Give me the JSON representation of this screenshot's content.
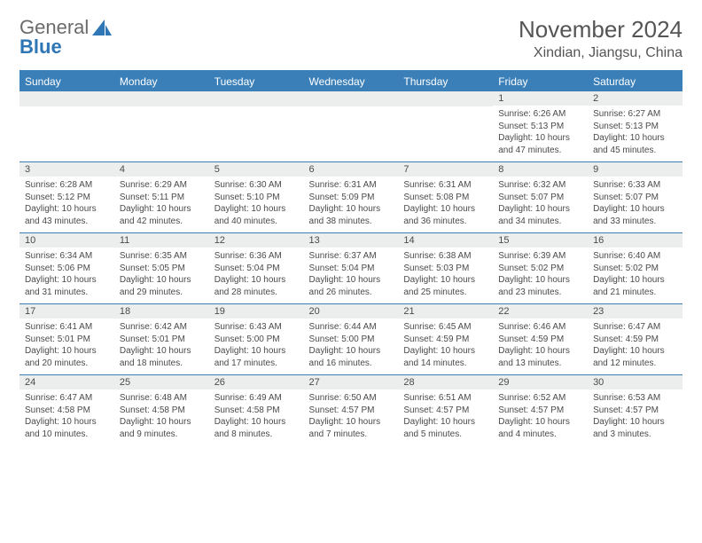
{
  "brand": {
    "part1": "General",
    "part2": "Blue"
  },
  "title": "November 2024",
  "location": "Xindian, Jiangsu, China",
  "colors": {
    "header_bg": "#3a7fb8",
    "header_text": "#ffffff",
    "daynum_bg": "#eceded",
    "border": "#3a7fb8",
    "body_text": "#4a4a4a",
    "title_text": "#555555"
  },
  "weekdays": [
    "Sunday",
    "Monday",
    "Tuesday",
    "Wednesday",
    "Thursday",
    "Friday",
    "Saturday"
  ],
  "weeks": [
    [
      {
        "day": "",
        "sunrise": "",
        "sunset": "",
        "daylight": ""
      },
      {
        "day": "",
        "sunrise": "",
        "sunset": "",
        "daylight": ""
      },
      {
        "day": "",
        "sunrise": "",
        "sunset": "",
        "daylight": ""
      },
      {
        "day": "",
        "sunrise": "",
        "sunset": "",
        "daylight": ""
      },
      {
        "day": "",
        "sunrise": "",
        "sunset": "",
        "daylight": ""
      },
      {
        "day": "1",
        "sunrise": "Sunrise: 6:26 AM",
        "sunset": "Sunset: 5:13 PM",
        "daylight": "Daylight: 10 hours and 47 minutes."
      },
      {
        "day": "2",
        "sunrise": "Sunrise: 6:27 AM",
        "sunset": "Sunset: 5:13 PM",
        "daylight": "Daylight: 10 hours and 45 minutes."
      }
    ],
    [
      {
        "day": "3",
        "sunrise": "Sunrise: 6:28 AM",
        "sunset": "Sunset: 5:12 PM",
        "daylight": "Daylight: 10 hours and 43 minutes."
      },
      {
        "day": "4",
        "sunrise": "Sunrise: 6:29 AM",
        "sunset": "Sunset: 5:11 PM",
        "daylight": "Daylight: 10 hours and 42 minutes."
      },
      {
        "day": "5",
        "sunrise": "Sunrise: 6:30 AM",
        "sunset": "Sunset: 5:10 PM",
        "daylight": "Daylight: 10 hours and 40 minutes."
      },
      {
        "day": "6",
        "sunrise": "Sunrise: 6:31 AM",
        "sunset": "Sunset: 5:09 PM",
        "daylight": "Daylight: 10 hours and 38 minutes."
      },
      {
        "day": "7",
        "sunrise": "Sunrise: 6:31 AM",
        "sunset": "Sunset: 5:08 PM",
        "daylight": "Daylight: 10 hours and 36 minutes."
      },
      {
        "day": "8",
        "sunrise": "Sunrise: 6:32 AM",
        "sunset": "Sunset: 5:07 PM",
        "daylight": "Daylight: 10 hours and 34 minutes."
      },
      {
        "day": "9",
        "sunrise": "Sunrise: 6:33 AM",
        "sunset": "Sunset: 5:07 PM",
        "daylight": "Daylight: 10 hours and 33 minutes."
      }
    ],
    [
      {
        "day": "10",
        "sunrise": "Sunrise: 6:34 AM",
        "sunset": "Sunset: 5:06 PM",
        "daylight": "Daylight: 10 hours and 31 minutes."
      },
      {
        "day": "11",
        "sunrise": "Sunrise: 6:35 AM",
        "sunset": "Sunset: 5:05 PM",
        "daylight": "Daylight: 10 hours and 29 minutes."
      },
      {
        "day": "12",
        "sunrise": "Sunrise: 6:36 AM",
        "sunset": "Sunset: 5:04 PM",
        "daylight": "Daylight: 10 hours and 28 minutes."
      },
      {
        "day": "13",
        "sunrise": "Sunrise: 6:37 AM",
        "sunset": "Sunset: 5:04 PM",
        "daylight": "Daylight: 10 hours and 26 minutes."
      },
      {
        "day": "14",
        "sunrise": "Sunrise: 6:38 AM",
        "sunset": "Sunset: 5:03 PM",
        "daylight": "Daylight: 10 hours and 25 minutes."
      },
      {
        "day": "15",
        "sunrise": "Sunrise: 6:39 AM",
        "sunset": "Sunset: 5:02 PM",
        "daylight": "Daylight: 10 hours and 23 minutes."
      },
      {
        "day": "16",
        "sunrise": "Sunrise: 6:40 AM",
        "sunset": "Sunset: 5:02 PM",
        "daylight": "Daylight: 10 hours and 21 minutes."
      }
    ],
    [
      {
        "day": "17",
        "sunrise": "Sunrise: 6:41 AM",
        "sunset": "Sunset: 5:01 PM",
        "daylight": "Daylight: 10 hours and 20 minutes."
      },
      {
        "day": "18",
        "sunrise": "Sunrise: 6:42 AM",
        "sunset": "Sunset: 5:01 PM",
        "daylight": "Daylight: 10 hours and 18 minutes."
      },
      {
        "day": "19",
        "sunrise": "Sunrise: 6:43 AM",
        "sunset": "Sunset: 5:00 PM",
        "daylight": "Daylight: 10 hours and 17 minutes."
      },
      {
        "day": "20",
        "sunrise": "Sunrise: 6:44 AM",
        "sunset": "Sunset: 5:00 PM",
        "daylight": "Daylight: 10 hours and 16 minutes."
      },
      {
        "day": "21",
        "sunrise": "Sunrise: 6:45 AM",
        "sunset": "Sunset: 4:59 PM",
        "daylight": "Daylight: 10 hours and 14 minutes."
      },
      {
        "day": "22",
        "sunrise": "Sunrise: 6:46 AM",
        "sunset": "Sunset: 4:59 PM",
        "daylight": "Daylight: 10 hours and 13 minutes."
      },
      {
        "day": "23",
        "sunrise": "Sunrise: 6:47 AM",
        "sunset": "Sunset: 4:59 PM",
        "daylight": "Daylight: 10 hours and 12 minutes."
      }
    ],
    [
      {
        "day": "24",
        "sunrise": "Sunrise: 6:47 AM",
        "sunset": "Sunset: 4:58 PM",
        "daylight": "Daylight: 10 hours and 10 minutes."
      },
      {
        "day": "25",
        "sunrise": "Sunrise: 6:48 AM",
        "sunset": "Sunset: 4:58 PM",
        "daylight": "Daylight: 10 hours and 9 minutes."
      },
      {
        "day": "26",
        "sunrise": "Sunrise: 6:49 AM",
        "sunset": "Sunset: 4:58 PM",
        "daylight": "Daylight: 10 hours and 8 minutes."
      },
      {
        "day": "27",
        "sunrise": "Sunrise: 6:50 AM",
        "sunset": "Sunset: 4:57 PM",
        "daylight": "Daylight: 10 hours and 7 minutes."
      },
      {
        "day": "28",
        "sunrise": "Sunrise: 6:51 AM",
        "sunset": "Sunset: 4:57 PM",
        "daylight": "Daylight: 10 hours and 5 minutes."
      },
      {
        "day": "29",
        "sunrise": "Sunrise: 6:52 AM",
        "sunset": "Sunset: 4:57 PM",
        "daylight": "Daylight: 10 hours and 4 minutes."
      },
      {
        "day": "30",
        "sunrise": "Sunrise: 6:53 AM",
        "sunset": "Sunset: 4:57 PM",
        "daylight": "Daylight: 10 hours and 3 minutes."
      }
    ]
  ]
}
